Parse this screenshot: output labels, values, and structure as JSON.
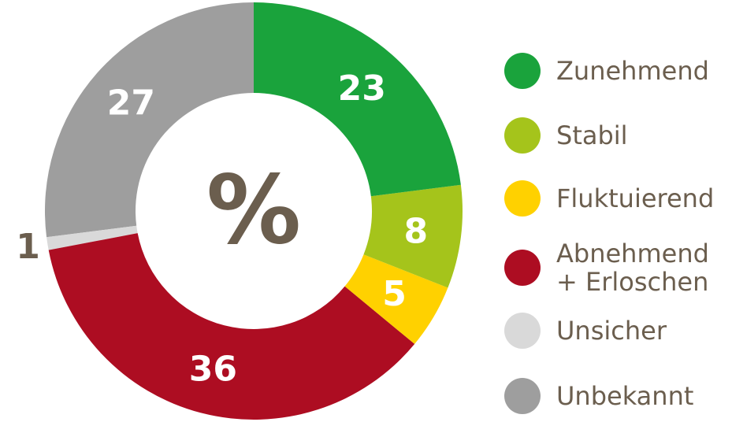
{
  "chart_data": {
    "type": "pie",
    "donut": true,
    "center_label": "%",
    "categories": [
      "Zunehmend",
      "Stabil",
      "Fluktuierend",
      "Abnehmend + Erloschen",
      "Unsicher",
      "Unbekannt"
    ],
    "values": [
      23,
      8,
      5,
      36,
      1,
      27
    ],
    "colors": [
      "#1aa33c",
      "#a5c41b",
      "#ffd100",
      "#ad0d22",
      "#d9d9d9",
      "#9e9e9e"
    ],
    "legend": "right"
  }
}
